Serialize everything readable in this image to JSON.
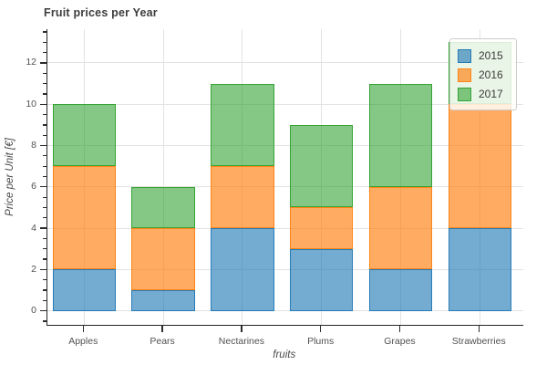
{
  "title": "Fruit prices per Year",
  "chart_data": {
    "type": "bar",
    "stacked": true,
    "title": "Fruit prices per Year",
    "xlabel": "fruits",
    "ylabel": "Price per Unit [€]",
    "categories": [
      "Apples",
      "Pears",
      "Nectarines",
      "Plums",
      "Grapes",
      "Strawberries"
    ],
    "series": [
      {
        "name": "2015",
        "values": [
          2,
          1,
          4,
          3,
          2,
          4
        ],
        "color": "#1f77b4",
        "fill": "rgba(31,119,180,0.62)",
        "edge": "rgba(31,119,180,0.9)"
      },
      {
        "name": "2016",
        "values": [
          5,
          3,
          3,
          2,
          4,
          6
        ],
        "color": "#ff7f0e",
        "fill": "rgba(255,127,14,0.65)",
        "edge": "rgba(255,127,14,0.9)"
      },
      {
        "name": "2017",
        "values": [
          3,
          2,
          4,
          4,
          5,
          3
        ],
        "color": "#2ca02c",
        "fill": "rgba(44,160,44,0.58)",
        "edge": "rgba(44,160,44,0.9)"
      }
    ],
    "stack_totals": [
      10,
      6,
      11,
      9,
      11,
      13
    ],
    "yticks": [
      0,
      2,
      4,
      6,
      8,
      10,
      12
    ],
    "minor_tick_step": 0.5,
    "ylim": [
      -0.65,
      13.65
    ],
    "grid": true,
    "legend_position": "upper right",
    "legend_entries": [
      "2015",
      "2016",
      "2017"
    ]
  },
  "colors": {
    "background": "#ffffff",
    "gridline": "#e3e3e3",
    "spine": "#262626",
    "tick_text": "#525252",
    "title_text": "#3d3d3d",
    "series_2015": "#1f77b4",
    "series_2016": "#ff7f0e",
    "series_2017": "#2ca02c"
  }
}
